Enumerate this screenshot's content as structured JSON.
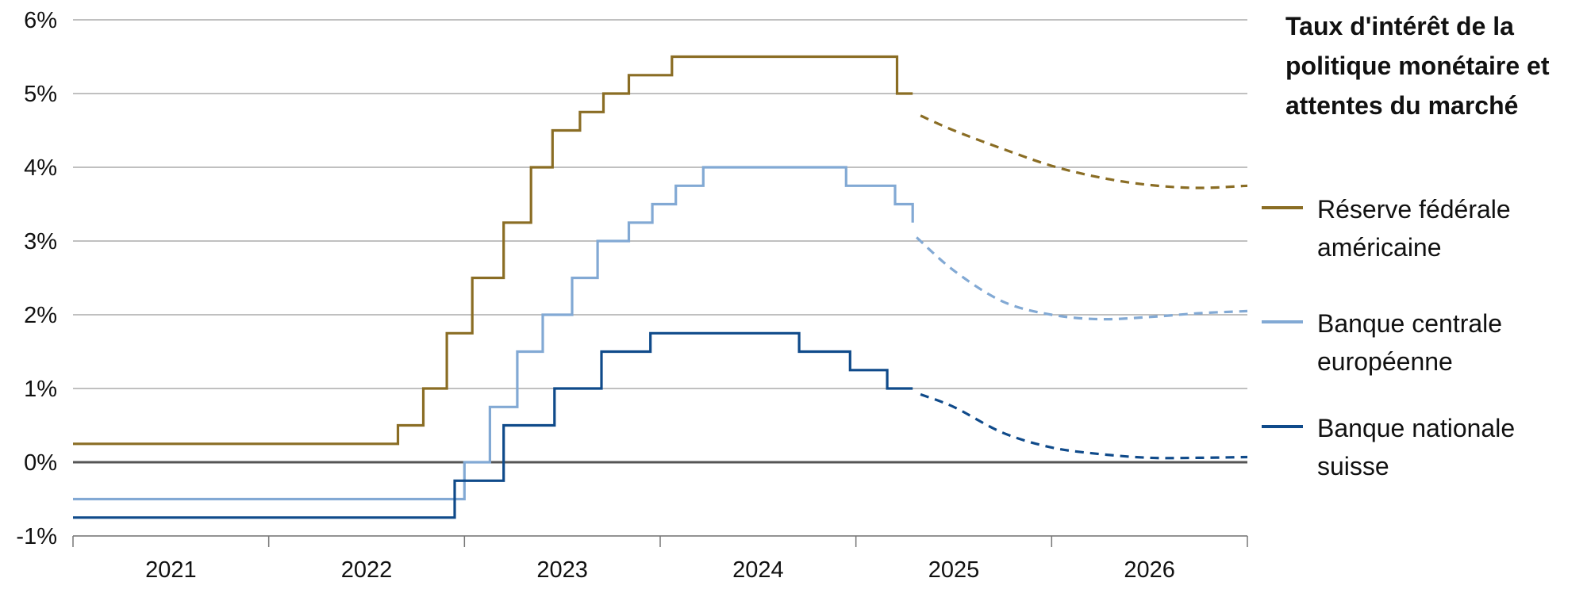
{
  "legend": {
    "title": "Taux d'intérêt de la politique monétaire et attentes du marché"
  },
  "chart_data": {
    "type": "line",
    "title": "Taux d'intérêt de la politique monétaire et attentes du marché",
    "xlabel": "",
    "ylabel": "",
    "x_range": [
      2020.5,
      2026.5
    ],
    "y_range": [
      -1,
      6
    ],
    "y_ticks": [
      -1,
      0,
      1,
      2,
      3,
      4,
      5,
      6
    ],
    "y_tick_labels": [
      "-1%",
      "0%",
      "1%",
      "2%",
      "3%",
      "4%",
      "5%",
      "6%"
    ],
    "x_tick_labels": [
      "2021",
      "2022",
      "2023",
      "2024",
      "2025",
      "2026"
    ],
    "x_tick_label_positions": [
      2021,
      2022,
      2023,
      2024,
      2025,
      2026
    ],
    "x_tick_marks": [
      2020.5,
      2021.5,
      2022.5,
      2023.5,
      2024.5,
      2025.5,
      2026.5
    ],
    "grid": true,
    "legend_placement": "right",
    "series": [
      {
        "name": "Réserve fédérale américaine",
        "color": "#8a6d24",
        "style": "step",
        "values": [
          [
            2020.5,
            0.25
          ],
          [
            2022.16,
            0.25
          ],
          [
            2022.16,
            0.5
          ],
          [
            2022.29,
            0.5
          ],
          [
            2022.29,
            1.0
          ],
          [
            2022.41,
            1.0
          ],
          [
            2022.41,
            1.75
          ],
          [
            2022.54,
            1.75
          ],
          [
            2022.54,
            2.5
          ],
          [
            2022.7,
            2.5
          ],
          [
            2022.7,
            3.25
          ],
          [
            2022.84,
            3.25
          ],
          [
            2022.84,
            4.0
          ],
          [
            2022.95,
            4.0
          ],
          [
            2022.95,
            4.5
          ],
          [
            2023.09,
            4.5
          ],
          [
            2023.09,
            4.75
          ],
          [
            2023.21,
            4.75
          ],
          [
            2023.21,
            5.0
          ],
          [
            2023.34,
            5.0
          ],
          [
            2023.34,
            5.25
          ],
          [
            2023.56,
            5.25
          ],
          [
            2023.56,
            5.5
          ],
          [
            2024.71,
            5.5
          ],
          [
            2024.71,
            5.0
          ],
          [
            2024.79,
            5.0
          ]
        ]
      },
      {
        "name": "Réserve fédérale américaine (attentes)",
        "color": "#8a6d24",
        "style": "dashed",
        "values": [
          [
            2024.83,
            4.7
          ],
          [
            2025.0,
            4.5
          ],
          [
            2025.25,
            4.25
          ],
          [
            2025.5,
            4.02
          ],
          [
            2025.75,
            3.86
          ],
          [
            2026.0,
            3.76
          ],
          [
            2026.25,
            3.72
          ],
          [
            2026.5,
            3.75
          ]
        ]
      },
      {
        "name": "Banque centrale européenne",
        "color": "#82a9d4",
        "style": "step",
        "values": [
          [
            2020.5,
            -0.5
          ],
          [
            2022.5,
            -0.5
          ],
          [
            2022.5,
            0.0
          ],
          [
            2022.63,
            0.0
          ],
          [
            2022.63,
            0.75
          ],
          [
            2022.77,
            0.75
          ],
          [
            2022.77,
            1.5
          ],
          [
            2022.9,
            1.5
          ],
          [
            2022.9,
            2.0
          ],
          [
            2023.05,
            2.0
          ],
          [
            2023.05,
            2.5
          ],
          [
            2023.18,
            2.5
          ],
          [
            2023.18,
            3.0
          ],
          [
            2023.34,
            3.0
          ],
          [
            2023.34,
            3.25
          ],
          [
            2023.46,
            3.25
          ],
          [
            2023.46,
            3.5
          ],
          [
            2023.58,
            3.5
          ],
          [
            2023.58,
            3.75
          ],
          [
            2023.72,
            3.75
          ],
          [
            2023.72,
            4.0
          ],
          [
            2024.45,
            4.0
          ],
          [
            2024.45,
            3.75
          ],
          [
            2024.7,
            3.75
          ],
          [
            2024.7,
            3.5
          ],
          [
            2024.79,
            3.5
          ],
          [
            2024.79,
            3.25
          ]
        ]
      },
      {
        "name": "Banque centrale européenne (attentes)",
        "color": "#82a9d4",
        "style": "dashed",
        "values": [
          [
            2024.81,
            3.05
          ],
          [
            2025.0,
            2.6
          ],
          [
            2025.25,
            2.18
          ],
          [
            2025.5,
            2.0
          ],
          [
            2025.75,
            1.94
          ],
          [
            2026.0,
            1.97
          ],
          [
            2026.25,
            2.02
          ],
          [
            2026.5,
            2.05
          ]
        ]
      },
      {
        "name": "Banque nationale suisse",
        "color": "#0f4a8a",
        "style": "step",
        "values": [
          [
            2020.5,
            -0.75
          ],
          [
            2022.45,
            -0.75
          ],
          [
            2022.45,
            -0.25
          ],
          [
            2022.7,
            -0.25
          ],
          [
            2022.7,
            0.5
          ],
          [
            2022.96,
            0.5
          ],
          [
            2022.96,
            1.0
          ],
          [
            2023.2,
            1.0
          ],
          [
            2023.2,
            1.5
          ],
          [
            2023.45,
            1.5
          ],
          [
            2023.45,
            1.75
          ],
          [
            2024.21,
            1.75
          ],
          [
            2024.21,
            1.5
          ],
          [
            2024.47,
            1.5
          ],
          [
            2024.47,
            1.25
          ],
          [
            2024.66,
            1.25
          ],
          [
            2024.66,
            1.0
          ],
          [
            2024.79,
            1.0
          ]
        ]
      },
      {
        "name": "Banque nationale suisse (attentes)",
        "color": "#0f4a8a",
        "style": "dashed",
        "values": [
          [
            2024.83,
            0.92
          ],
          [
            2025.0,
            0.75
          ],
          [
            2025.25,
            0.4
          ],
          [
            2025.5,
            0.2
          ],
          [
            2025.75,
            0.11
          ],
          [
            2026.0,
            0.06
          ],
          [
            2026.25,
            0.06
          ],
          [
            2026.5,
            0.07
          ]
        ]
      }
    ],
    "legend": [
      {
        "label": "Réserve fédérale américaine",
        "line1": "Réserve fédérale",
        "line2": "américaine",
        "color": "#8a6d24"
      },
      {
        "label": "Banque centrale européenne",
        "line1": "Banque centrale",
        "line2": "européenne",
        "color": "#82a9d4"
      },
      {
        "label": "Banque nationale suisse",
        "line1": "Banque nationale",
        "line2": "suisse",
        "color": "#0f4a8a"
      }
    ]
  }
}
